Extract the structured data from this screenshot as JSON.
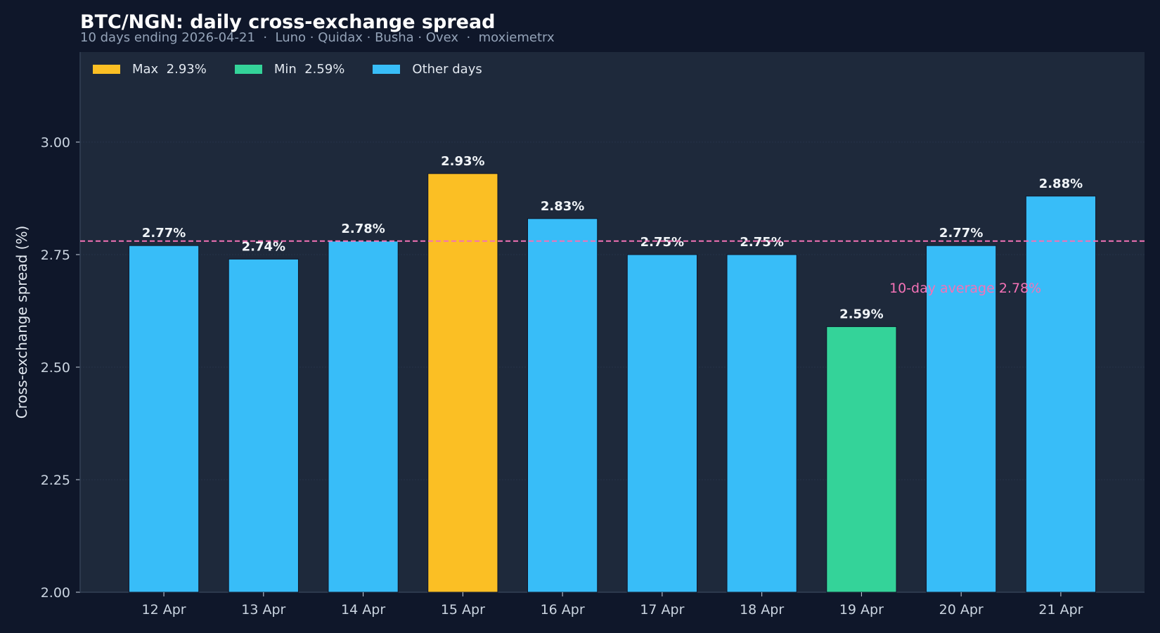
{
  "chart_data": {
    "type": "bar",
    "title": "BTC/NGN: daily cross-exchange spread",
    "subtitle": "10 days ending 2026-04-21  ·  Luno · Quidax · Busha · Ovex  ·  moxiemetrx",
    "categories": [
      "12 Apr",
      "13 Apr",
      "14 Apr",
      "15 Apr",
      "16 Apr",
      "17 Apr",
      "18 Apr",
      "19 Apr",
      "20 Apr",
      "21 Apr"
    ],
    "values": [
      2.77,
      2.74,
      2.78,
      2.93,
      2.83,
      2.75,
      2.75,
      2.59,
      2.77,
      2.88
    ],
    "data_labels": [
      "2.77%",
      "2.74%",
      "2.78%",
      "2.93%",
      "2.83%",
      "2.75%",
      "2.75%",
      "2.59%",
      "2.77%",
      "2.88%"
    ],
    "ylabel": "Cross-exchange spread (%)",
    "xlabel": "",
    "ylim": [
      2.0,
      3.2
    ],
    "yticks": [
      "2.00",
      "2.25",
      "2.50",
      "2.75",
      "3.00"
    ],
    "grid": true,
    "legend_position": "top-left",
    "legend": [
      "Max  2.93%",
      "Min  2.59%",
      "Other days"
    ],
    "reference_line": {
      "value": 2.78,
      "label": "10-day average  2.78%",
      "color": "#f472b6",
      "style": "dashed"
    },
    "colors": {
      "max": "#fbbf24",
      "min": "#34d399",
      "other": "#38bdf8",
      "background": "#0f172a",
      "plot_background": "#1e293b"
    }
  }
}
